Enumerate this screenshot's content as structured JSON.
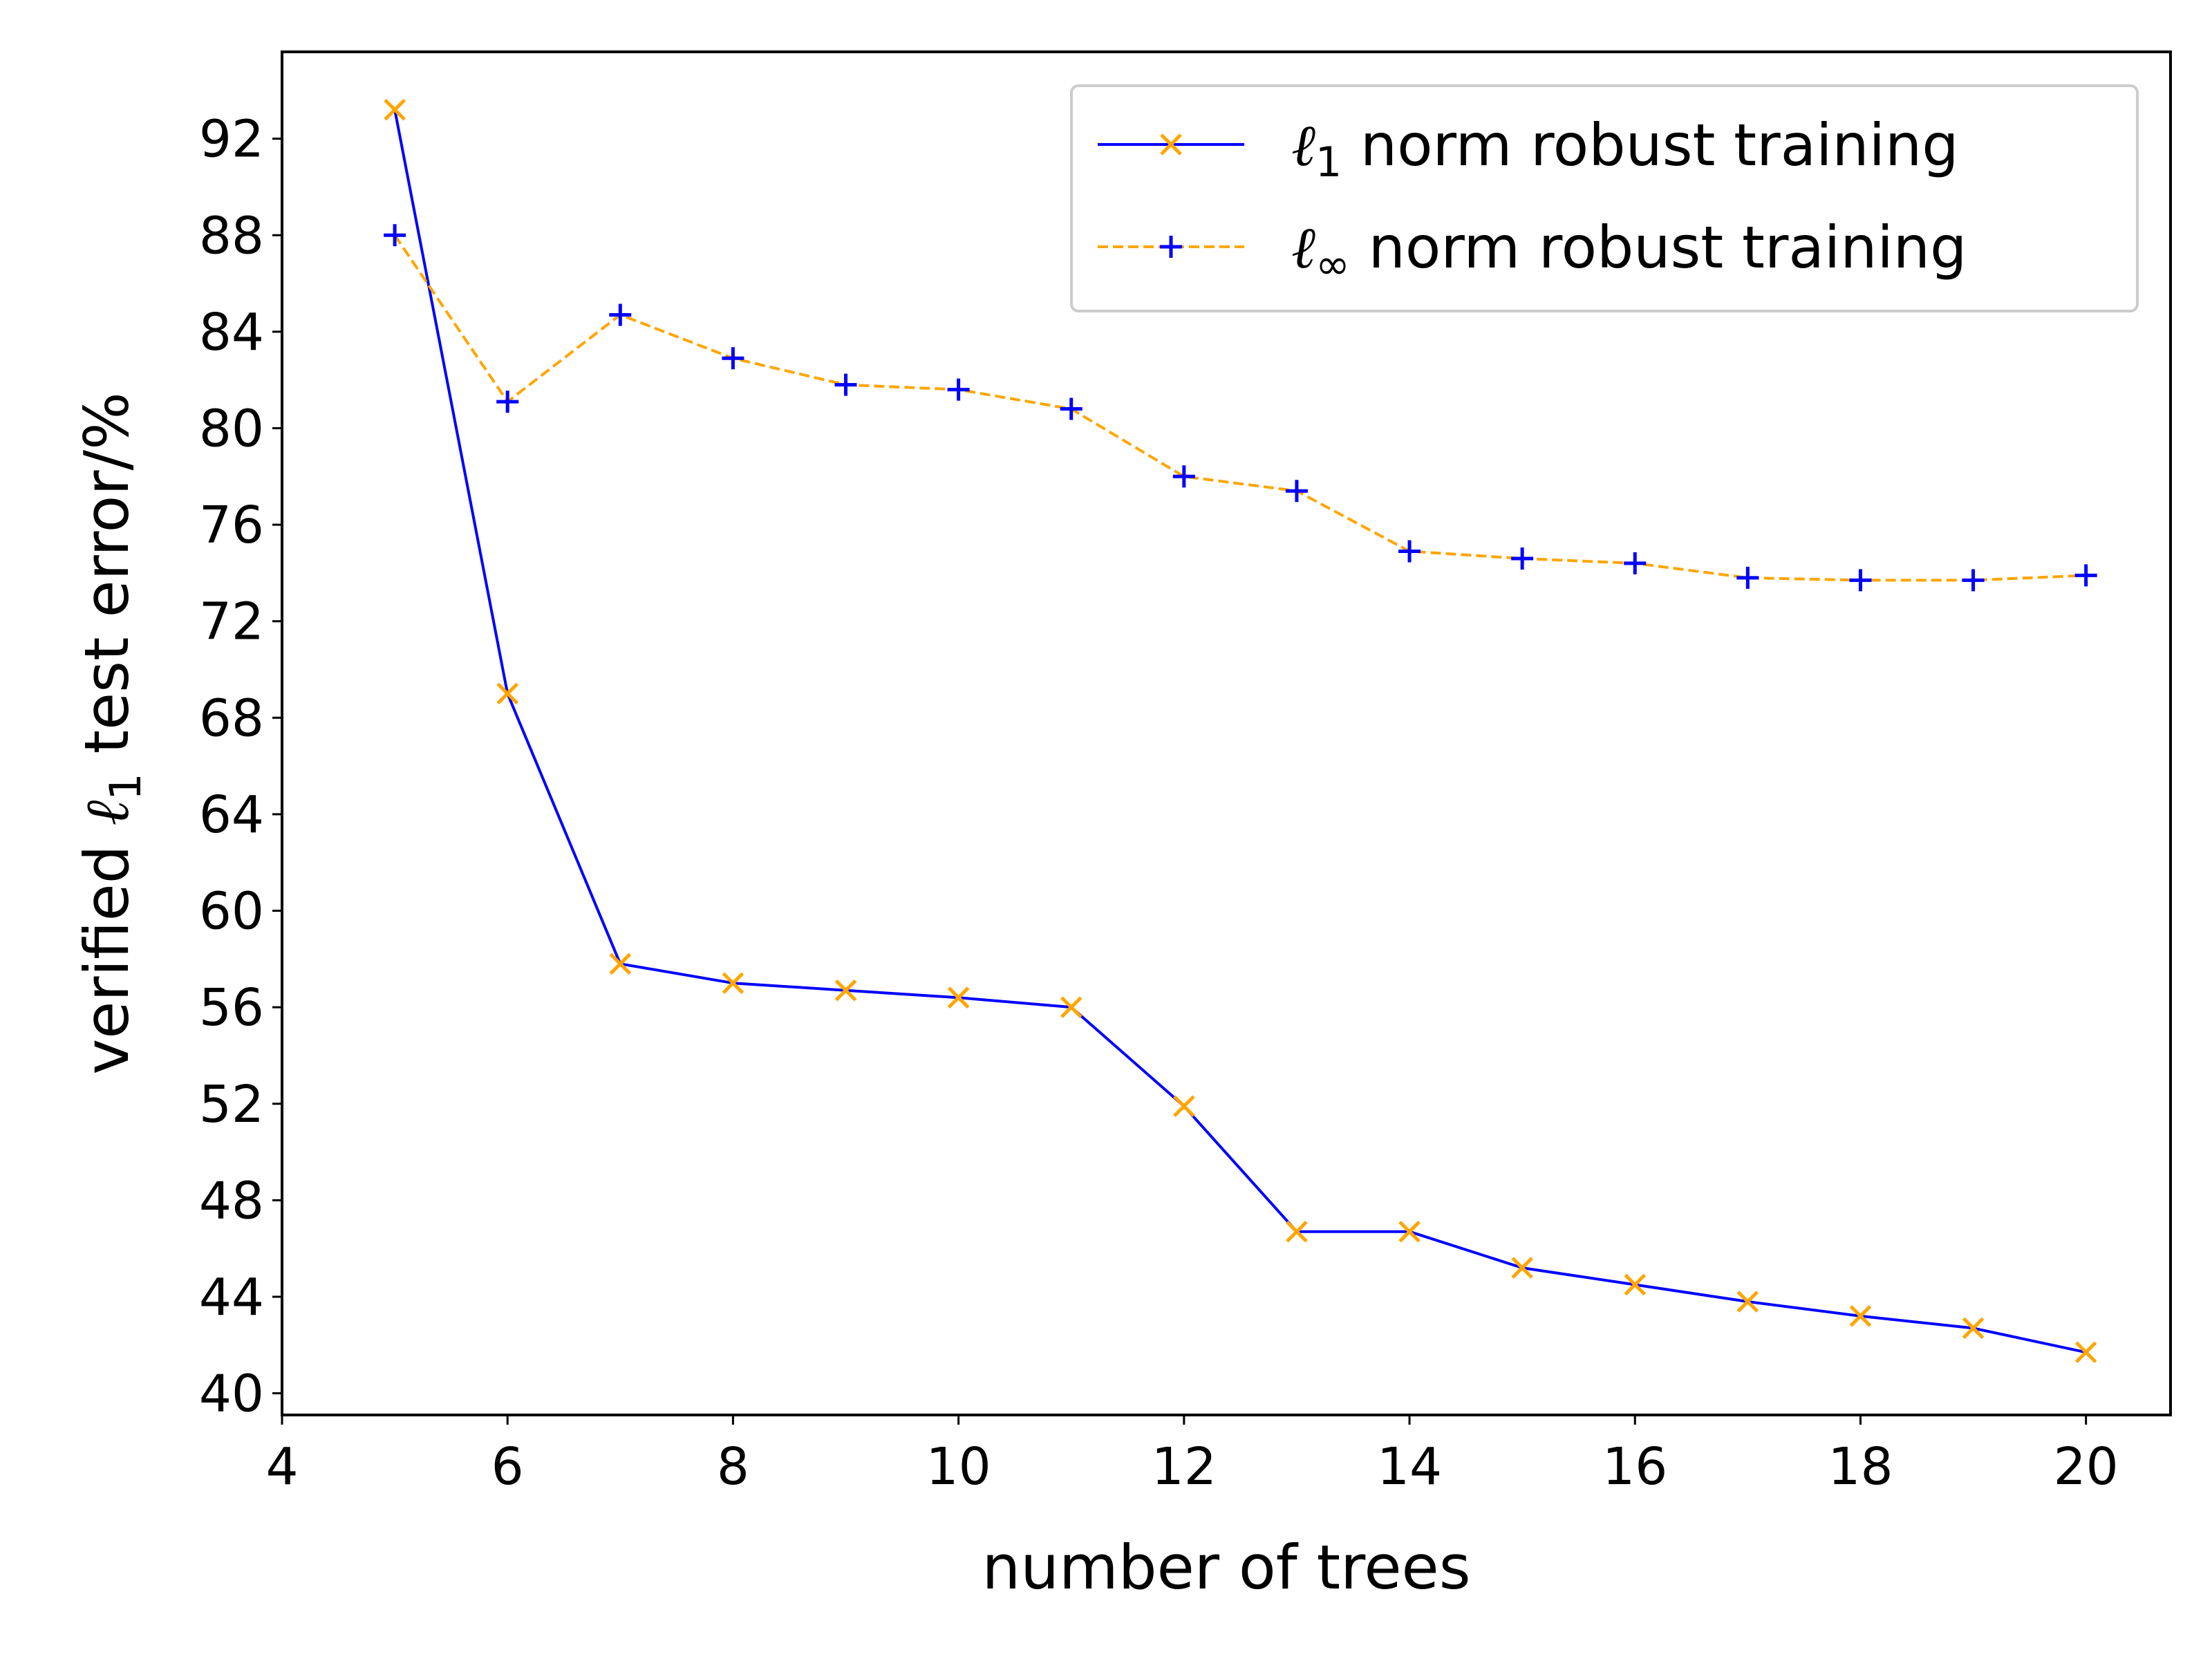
{
  "chart_data": {
    "type": "line",
    "xlabel": "number of trees",
    "ylabel": {
      "prefix": "verified ",
      "symbol": "ℓ",
      "subscript": "1",
      "suffix": " test error/%"
    },
    "xlim": [
      4,
      20.75
    ],
    "ylim": [
      39.1,
      95.6
    ],
    "xticks": [
      4,
      6,
      8,
      10,
      12,
      14,
      16,
      18,
      20
    ],
    "yticks": [
      40,
      44,
      48,
      52,
      56,
      60,
      64,
      68,
      72,
      76,
      80,
      84,
      88,
      92
    ],
    "grid": false,
    "legend_position": "upper-right",
    "series": [
      {
        "name": {
          "symbol": "ℓ",
          "subscript": "1",
          "text": " norm robust training"
        },
        "line_color": "#0000ff",
        "marker_color": "#ffa500",
        "line_style": "solid",
        "marker": "x",
        "x": [
          5,
          6,
          7,
          8,
          9,
          10,
          11,
          12,
          13,
          14,
          15,
          16,
          17,
          18,
          19,
          20
        ],
        "y": [
          93.2,
          69.0,
          57.8,
          57.0,
          56.7,
          56.4,
          56.0,
          51.9,
          46.7,
          46.7,
          45.2,
          44.5,
          43.8,
          43.2,
          42.7,
          41.7
        ]
      },
      {
        "name": {
          "symbol": "ℓ",
          "subscript": "∞",
          "text": " norm robust training"
        },
        "line_color": "#ffa500",
        "marker_color": "#0000ff",
        "line_style": "dashed",
        "marker": "+",
        "x": [
          5,
          6,
          7,
          8,
          9,
          10,
          11,
          12,
          13,
          14,
          15,
          16,
          17,
          18,
          19,
          20
        ],
        "y": [
          88.0,
          81.1,
          84.7,
          82.9,
          81.8,
          81.6,
          80.8,
          78.0,
          77.4,
          74.9,
          74.6,
          74.4,
          73.8,
          73.7,
          73.7,
          73.9
        ]
      }
    ]
  }
}
